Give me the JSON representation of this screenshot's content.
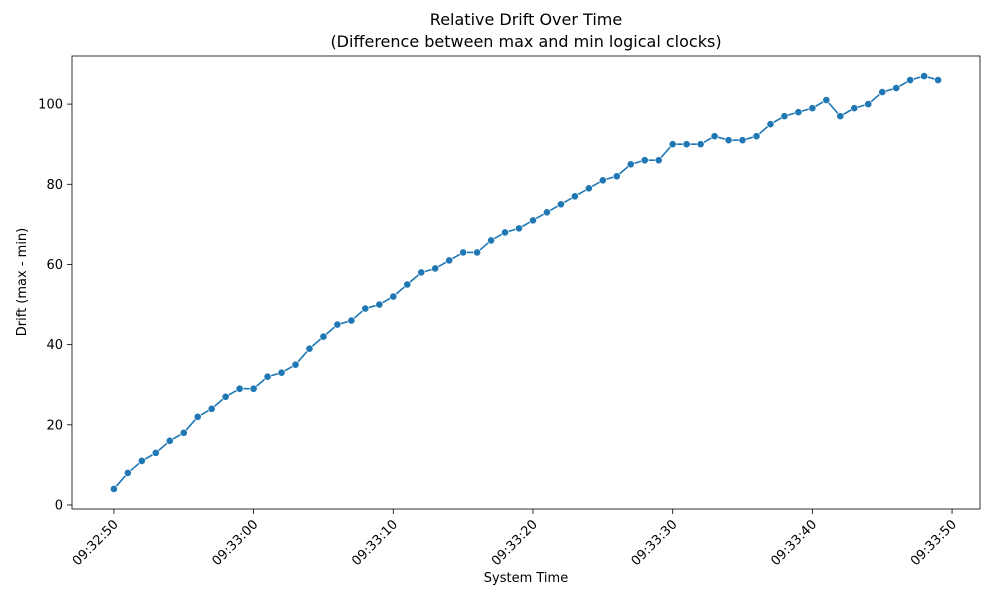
{
  "chart_data": {
    "type": "line",
    "title": "Relative Drift Over Time",
    "subtitle": "(Difference between max and min logical clocks)",
    "xlabel": "System Time",
    "ylabel": "Drift (max - min)",
    "xlim": [
      "09:32:47",
      "09:33:52"
    ],
    "ylim": [
      -1,
      112
    ],
    "x_ticks": [
      "09:32:50",
      "09:33:00",
      "09:33:10",
      "09:33:20",
      "09:33:30",
      "09:33:40",
      "09:33:50"
    ],
    "y_ticks": [
      0,
      20,
      40,
      60,
      80,
      100
    ],
    "grid": false,
    "marker": "circle",
    "series": [
      {
        "color": "#1f77b4",
        "x": [
          "09:32:50",
          "09:32:51",
          "09:32:52",
          "09:32:53",
          "09:32:54",
          "09:32:55",
          "09:32:56",
          "09:32:57",
          "09:32:58",
          "09:32:59",
          "09:33:00",
          "09:33:01",
          "09:33:02",
          "09:33:03",
          "09:33:04",
          "09:33:05",
          "09:33:06",
          "09:33:07",
          "09:33:08",
          "09:33:09",
          "09:33:10",
          "09:33:11",
          "09:33:12",
          "09:33:13",
          "09:33:14",
          "09:33:15",
          "09:33:16",
          "09:33:17",
          "09:33:18",
          "09:33:19",
          "09:33:20",
          "09:33:21",
          "09:33:22",
          "09:33:23",
          "09:33:24",
          "09:33:25",
          "09:33:26",
          "09:33:27",
          "09:33:28",
          "09:33:29",
          "09:33:30",
          "09:33:31",
          "09:33:32",
          "09:33:33",
          "09:33:34",
          "09:33:35",
          "09:33:36",
          "09:33:37",
          "09:33:38",
          "09:33:39",
          "09:33:40",
          "09:33:41",
          "09:33:42",
          "09:33:43",
          "09:33:44",
          "09:33:45",
          "09:33:46",
          "09:33:47",
          "09:33:48",
          "09:33:49"
        ],
        "values": [
          4,
          8,
          11,
          13,
          16,
          18,
          22,
          24,
          27,
          29,
          29,
          32,
          33,
          35,
          39,
          42,
          45,
          46,
          49,
          50,
          52,
          55,
          58,
          59,
          61,
          63,
          63,
          66,
          68,
          69,
          71,
          73,
          75,
          77,
          79,
          81,
          82,
          85,
          86,
          86,
          90,
          90,
          90,
          92,
          91,
          91,
          92,
          95,
          97,
          98,
          99,
          101,
          97,
          99,
          100,
          103,
          104,
          106,
          107,
          106
        ]
      }
    ]
  }
}
